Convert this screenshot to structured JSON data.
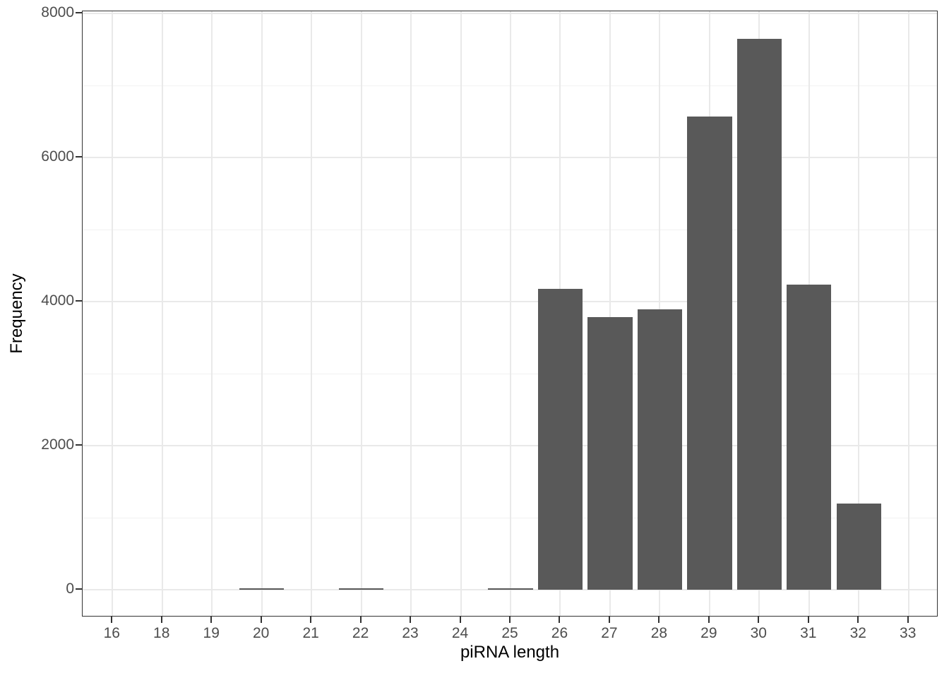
{
  "chart_data": {
    "type": "bar",
    "title": "",
    "xlabel": "piRNA length",
    "ylabel": "Frequency",
    "categories": [
      "16",
      "18",
      "19",
      "20",
      "21",
      "22",
      "23",
      "24",
      "25",
      "26",
      "27",
      "28",
      "29",
      "30",
      "31",
      "32",
      "33"
    ],
    "values": [
      2,
      2,
      2,
      20,
      2,
      20,
      2,
      2,
      20,
      4180,
      3780,
      3890,
      6570,
      7650,
      4240,
      1200,
      2
    ],
    "ylim": [
      0,
      8000
    ],
    "y_major_ticks": [
      0,
      2000,
      4000,
      6000,
      8000
    ],
    "y_minor_ticks": [
      1000,
      3000,
      5000,
      7000
    ],
    "grid": "on",
    "legend": "none",
    "colors": {
      "bar_fill": "#595959",
      "panel_border": "#333333",
      "grid_major": "#e9e9e9",
      "grid_minor": "#f2f2f2",
      "tick_mark": "#333333",
      "tick_label": "#4d4d4d",
      "axis_title": "#000000",
      "background": "#ffffff"
    }
  }
}
